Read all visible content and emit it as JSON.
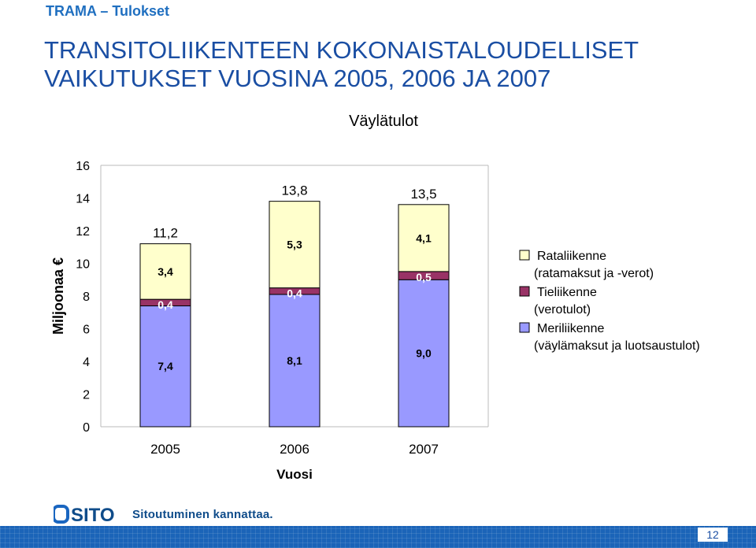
{
  "header": {
    "tag": "TRAMA – Tulokset"
  },
  "title": {
    "line1": "TRANSITOLIIKENTEEN KOKONAISTALOUDELLISET",
    "line2": "VAIKUTUKSET VUOSINA 2005, 2006 JA 2007"
  },
  "chart_data": {
    "type": "bar",
    "stacked": true,
    "title": "Väylätulot",
    "xlabel": "Vuosi",
    "ylabel": "Miljoonaa €",
    "ylim": [
      0,
      16
    ],
    "yticks": [
      "0",
      "2",
      "4",
      "6",
      "8",
      "10",
      "12",
      "14",
      "16"
    ],
    "categories": [
      "2005",
      "2006",
      "2007"
    ],
    "series": [
      {
        "name": "Meriliikenne (väylämaksut ja luotsaustulot)",
        "values": [
          7.4,
          8.1,
          9.0
        ],
        "labels": [
          "7,4",
          "8,1",
          "9,0"
        ],
        "color": "#9999ff"
      },
      {
        "name": "Tieliikenne (verotulot)",
        "values": [
          0.4,
          0.4,
          0.5
        ],
        "labels": [
          "0,4",
          "0,4",
          "0,5"
        ],
        "color": "#993366"
      },
      {
        "name": "Rataliikenne (ratamaksut ja -verot)",
        "values": [
          3.4,
          5.3,
          4.1
        ],
        "labels": [
          "3,4",
          "5,3",
          "4,1"
        ],
        "color": "#ffffcc"
      }
    ],
    "totals": [
      "11,2",
      "13,8",
      "13,5"
    ],
    "legend": [
      {
        "line1": "Rataliikenne",
        "line2": "(ratamaksut ja -verot)",
        "color": "#ffffcc"
      },
      {
        "line1": "Tieliikenne",
        "line2": "(verotulot)",
        "color": "#993366"
      },
      {
        "line1": "Meriliikenne",
        "line2": "(väylämaksut ja luotsaustulot)",
        "color": "#9999ff"
      }
    ],
    "legend_position": "right",
    "grid": false
  },
  "footer": {
    "logo_text": "SITO",
    "slogan": "Sitoutuminen kannattaa.",
    "page_number": "12"
  }
}
